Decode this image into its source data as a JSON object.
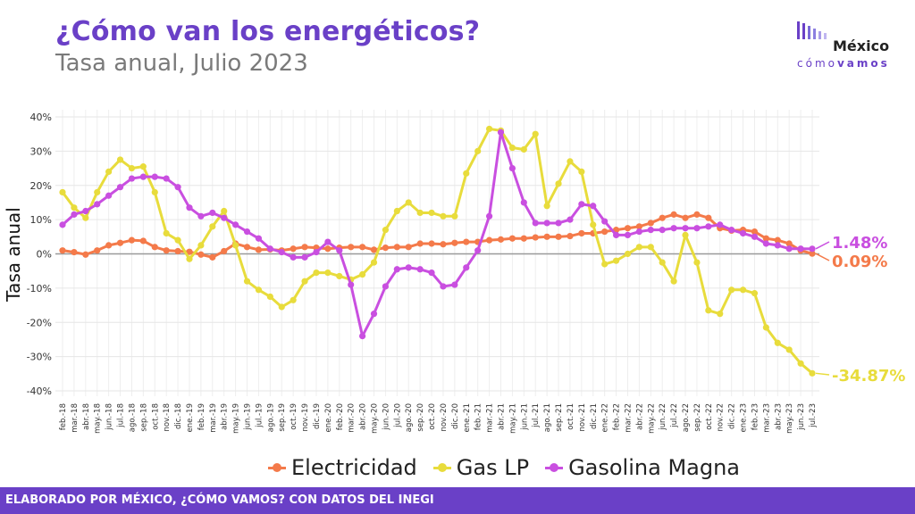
{
  "header": {
    "title": "¿Cómo van los energéticos?",
    "subtitle": "Tasa anual, Julio 2023"
  },
  "logo": {
    "word": "México",
    "sub_a": "cómo",
    "sub_b": "vamos"
  },
  "footer": {
    "text": "ELABORADO POR MÉXICO, ¿CÓMO VAMOS? CON DATOS DEL INEGI"
  },
  "chart_data": {
    "type": "line",
    "ylabel": "Tasa anual",
    "xlabel": "",
    "ylim": [
      -40,
      40
    ],
    "yticks": [
      -40,
      -30,
      -20,
      -10,
      0,
      10,
      20,
      30,
      40
    ],
    "ytick_suffix": "%",
    "grid": true,
    "legend_position": "bottom",
    "categories": [
      "feb.-18",
      "mar.-18",
      "abr.-18",
      "may.-18",
      "jun.-18",
      "jul.-18",
      "ago.-18",
      "sep.-18",
      "oct.-18",
      "nov.-18",
      "dic.-18",
      "ene.-19",
      "feb.-19",
      "mar.-19",
      "abr.-19",
      "may.-19",
      "jun.-19",
      "jul.-19",
      "ago.-19",
      "sep.-19",
      "oct.-19",
      "nov.-19",
      "dic.-19",
      "ene.-20",
      "feb.-20",
      "mar.-20",
      "abr.-20",
      "may.-20",
      "jun.-20",
      "jul.-20",
      "ago.-20",
      "sep.-20",
      "oct.-20",
      "nov.-20",
      "dic.-20",
      "ene.-21",
      "feb.-21",
      "mar.-21",
      "abr.-21",
      "may.-21",
      "jun.-21",
      "jul.-21",
      "ago.-21",
      "sep.-21",
      "oct.-21",
      "nov.-21",
      "dic.-21",
      "ene.-22",
      "feb.-22",
      "mar.-22",
      "abr.-22",
      "may.-22",
      "jun.-22",
      "jul.-22",
      "ago.-22",
      "sep.-22",
      "oct.-22",
      "nov.-22",
      "dic.-22",
      "ene.-23",
      "feb.-23",
      "mar.-23",
      "abr.-23",
      "may.-23",
      "jun.-23",
      "jul.-23"
    ],
    "series": [
      {
        "name": "Electricidad",
        "color": "#f47a4a",
        "end_label": "0.09%",
        "values": [
          1.0,
          0.5,
          -0.2,
          1.0,
          2.5,
          3.2,
          4.0,
          3.8,
          2.0,
          1.0,
          0.8,
          0.6,
          -0.2,
          -1.0,
          0.8,
          3.0,
          2.0,
          1.2,
          1.3,
          1.0,
          1.5,
          2.0,
          1.8,
          1.5,
          1.8,
          2.0,
          2.0,
          1.2,
          1.8,
          2.0,
          2.0,
          3.0,
          3.0,
          2.8,
          3.2,
          3.5,
          3.5,
          4.0,
          4.2,
          4.5,
          4.5,
          4.8,
          5.0,
          5.0,
          5.2,
          6.0,
          6.0,
          6.5,
          7.0,
          7.5,
          8.0,
          9.0,
          10.5,
          11.5,
          10.5,
          11.5,
          10.5,
          7.5,
          6.8,
          7.0,
          6.5,
          4.5,
          4.0,
          3.0,
          1.0,
          0.09
        ]
      },
      {
        "name": "Gas LP",
        "color": "#e8dc3c",
        "end_label": "-34.87%",
        "values": [
          18.0,
          13.5,
          10.5,
          18.0,
          24.0,
          27.5,
          25.0,
          25.5,
          18.0,
          6.0,
          4.0,
          -1.5,
          2.5,
          8.0,
          12.5,
          2.5,
          -8.0,
          -10.5,
          -12.5,
          -15.5,
          -13.5,
          -8.0,
          -5.5,
          -5.5,
          -6.5,
          -7.5,
          -6.0,
          -2.5,
          7.0,
          12.5,
          15.0,
          12.0,
          12.0,
          11.0,
          11.0,
          23.5,
          30.0,
          36.5,
          36.0,
          31.0,
          30.5,
          35.0,
          14.0,
          20.5,
          27.0,
          24.0,
          8.5,
          -3.0,
          -2.0,
          0.0,
          2.0,
          2.0,
          -2.5,
          -8.0,
          5.5,
          -2.5,
          -16.5,
          -17.5,
          -10.5,
          -10.5,
          -11.5,
          -21.5,
          -26.0,
          -28.0,
          -32.0,
          -34.87
        ]
      },
      {
        "name": "Gasolina Magna",
        "color": "#c94fe0",
        "end_label": "1.48%",
        "values": [
          8.5,
          11.5,
          12.5,
          14.5,
          17.0,
          19.5,
          22.0,
          22.5,
          22.5,
          22.0,
          19.5,
          13.5,
          11.0,
          12.0,
          10.5,
          8.5,
          6.5,
          4.5,
          1.5,
          0.5,
          -1.0,
          -1.0,
          0.5,
          3.5,
          1.0,
          -9.0,
          -24.0,
          -17.5,
          -9.5,
          -4.5,
          -4.0,
          -4.5,
          -5.5,
          -9.5,
          -9.0,
          -4.0,
          1.0,
          11.0,
          35.5,
          25.0,
          15.0,
          9.0,
          9.0,
          9.0,
          10.0,
          14.5,
          14.0,
          9.5,
          5.5,
          5.5,
          6.5,
          7.0,
          7.0,
          7.5,
          7.5,
          7.5,
          8.0,
          8.5,
          7.0,
          6.0,
          5.0,
          3.0,
          2.5,
          1.5,
          1.5,
          1.48
        ]
      }
    ]
  }
}
